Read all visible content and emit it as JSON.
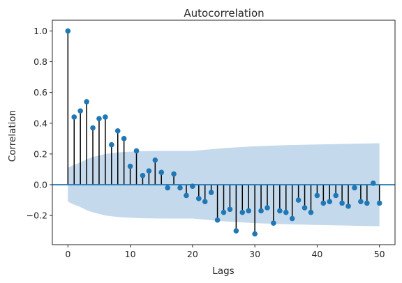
{
  "chart_data": {
    "type": "scatter",
    "style": "stem",
    "title": "Autocorrelation",
    "xlabel": "Lags",
    "ylabel": "Correlation",
    "xlim": [
      -2.5,
      52.5
    ],
    "ylim": [
      -0.39,
      1.07
    ],
    "xticks": [
      0,
      10,
      20,
      30,
      40,
      50
    ],
    "xtick_labels": [
      "0",
      "10",
      "20",
      "30",
      "40",
      "50"
    ],
    "yticks": [
      1.0,
      0.8,
      0.6,
      0.4,
      0.2,
      0.0,
      -0.2
    ],
    "ytick_labels": [
      "1.0",
      "0.8",
      "0.6",
      "0.4",
      "0.2",
      "0.0",
      "−0.2"
    ],
    "grid": false,
    "lags": [
      0,
      1,
      2,
      3,
      4,
      5,
      6,
      7,
      8,
      9,
      10,
      11,
      12,
      13,
      14,
      15,
      16,
      17,
      18,
      19,
      20,
      21,
      22,
      23,
      24,
      25,
      26,
      27,
      28,
      29,
      30,
      31,
      32,
      33,
      34,
      35,
      36,
      37,
      38,
      39,
      40,
      41,
      42,
      43,
      44,
      45,
      46,
      47,
      48,
      49,
      50
    ],
    "values": [
      1.0,
      0.44,
      0.48,
      0.54,
      0.37,
      0.43,
      0.44,
      0.26,
      0.35,
      0.3,
      0.12,
      0.22,
      0.06,
      0.09,
      0.16,
      0.08,
      -0.02,
      0.07,
      -0.02,
      -0.07,
      -0.01,
      -0.09,
      -0.11,
      -0.05,
      -0.23,
      -0.18,
      -0.16,
      -0.3,
      -0.18,
      -0.17,
      -0.32,
      -0.17,
      -0.15,
      -0.25,
      -0.17,
      -0.18,
      -0.22,
      -0.1,
      -0.15,
      -0.18,
      -0.07,
      -0.12,
      -0.11,
      -0.07,
      -0.12,
      -0.14,
      -0.02,
      -0.11,
      -0.12,
      0.01,
      -0.12
    ],
    "confidence_band": {
      "lags": [
        0,
        1,
        2,
        3,
        4,
        5,
        6,
        7,
        8,
        9,
        10,
        12,
        15,
        20,
        25,
        30,
        35,
        40,
        45,
        50
      ],
      "upper": [
        0.11,
        0.13,
        0.145,
        0.165,
        0.18,
        0.19,
        0.2,
        0.205,
        0.21,
        0.213,
        0.215,
        0.218,
        0.22,
        0.22,
        0.238,
        0.25,
        0.257,
        0.262,
        0.266,
        0.27
      ],
      "lower": [
        -0.11,
        -0.13,
        -0.145,
        -0.165,
        -0.18,
        -0.19,
        -0.2,
        -0.205,
        -0.21,
        -0.213,
        -0.215,
        -0.218,
        -0.22,
        -0.22,
        -0.238,
        -0.25,
        -0.257,
        -0.262,
        -0.266,
        -0.27
      ]
    },
    "colors": {
      "marker": "#1f77b4",
      "stem": "#000000",
      "zero_line": "#1f77b4",
      "band": "#c4d9ec",
      "axes": "#262626"
    }
  }
}
